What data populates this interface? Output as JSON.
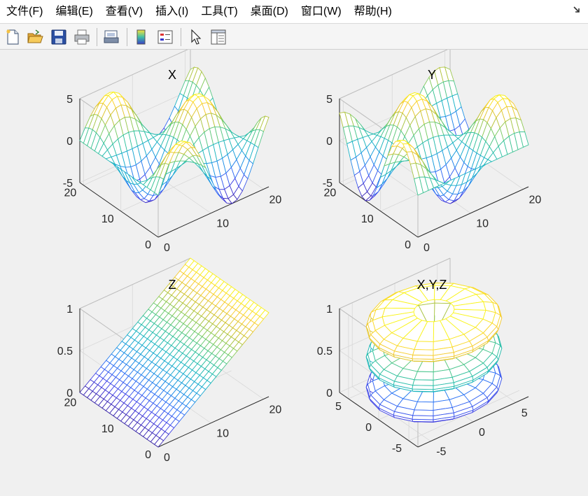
{
  "menu": {
    "items": [
      "文件(F)",
      "编辑(E)",
      "查看(V)",
      "插入(I)",
      "工具(T)",
      "桌面(D)",
      "窗口(W)",
      "帮助(H)"
    ]
  },
  "toolbar": {
    "buttons": [
      "new-file-icon",
      "open-folder-icon",
      "save-icon",
      "print-icon",
      "print-preview-icon",
      "colorbar-icon",
      "legend-icon",
      "pointer-icon",
      "property-inspector-icon"
    ]
  },
  "chart_data": [
    {
      "type": "mesh",
      "title": "X",
      "function": "5*sin(x/3)*cos(y/3)",
      "x": [
        0,
        21
      ],
      "y": [
        0,
        21
      ],
      "grid_steps": 21,
      "zlim": [
        -5,
        5
      ],
      "xticks": [
        0,
        10,
        20
      ],
      "yticks": [
        0,
        10,
        20
      ],
      "zticks": [
        -5,
        0,
        5
      ],
      "colormap": "parula"
    },
    {
      "type": "mesh",
      "title": "Y",
      "function": "5*cos(x/3)*sin(y/3)",
      "x": [
        0,
        21
      ],
      "y": [
        0,
        21
      ],
      "grid_steps": 21,
      "zlim": [
        -5,
        5
      ],
      "xticks": [
        0,
        10,
        20
      ],
      "yticks": [
        0,
        10,
        20
      ],
      "zticks": [
        -5,
        0,
        5
      ],
      "colormap": "parula"
    },
    {
      "type": "mesh",
      "title": "Z",
      "function": "x/21",
      "x": [
        0,
        21
      ],
      "y": [
        0,
        21
      ],
      "grid_steps": 21,
      "zlim": [
        0,
        1
      ],
      "xticks": [
        0,
        10,
        20
      ],
      "yticks": [
        0,
        10,
        20
      ],
      "zticks": [
        0,
        0.5,
        1
      ],
      "colormap": "parula"
    },
    {
      "type": "mesh",
      "title": "X,Y,Z",
      "shapes": [
        {
          "center_z": 0.14,
          "radius": 6.5,
          "half_height": 0.14
        },
        {
          "center_z": 0.5,
          "radius": 6.5,
          "half_height": 0.14
        },
        {
          "center_z": 0.86,
          "radius": 6.5,
          "half_height": 0.14
        }
      ],
      "xlim": [
        -6.5,
        6.5
      ],
      "ylim": [
        -6.5,
        6.5
      ],
      "zlim": [
        0,
        1
      ],
      "xticks": [
        -5,
        0,
        5
      ],
      "yticks": [
        -5,
        0,
        5
      ],
      "zticks": [
        0,
        0.5,
        1
      ],
      "colormap": "parula"
    }
  ]
}
